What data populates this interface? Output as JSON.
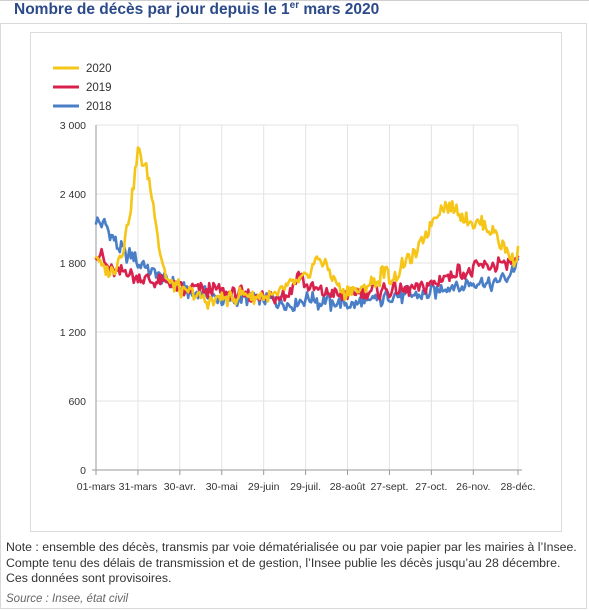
{
  "title": {
    "main": "Nombre de décès par jour depuis le 1",
    "sup": "er",
    "tail": " mars 2020"
  },
  "note": "Note : ensemble des décès, transmis par voie dématérialisée ou par voie papier par les mairies à l’Insee. Compte tenu des délais de transmission et de gestion, l’Insee publie les décès jusqu’au 28 décembre. Ces données sont provisoires.",
  "source": "Source : Insee, état civil",
  "chart_data": {
    "type": "line",
    "title": "Nombre de décès par jour depuis le 1er mars 2020",
    "xlabel": "",
    "ylabel": "",
    "ylim": [
      0,
      3000
    ],
    "xlim_days": [
      0,
      302
    ],
    "yticks": [
      0,
      600,
      1200,
      1800,
      2400,
      3000
    ],
    "ytick_labels": [
      "0",
      "600",
      "1 200",
      "1 800",
      "2 400",
      "3 000"
    ],
    "xtick_labels": [
      "01-mars",
      "31-mars",
      "30-avr.",
      "30-mai",
      "29-juin",
      "29-juil.",
      "28-août",
      "27-sept.",
      "27-oct.",
      "26-nov.",
      "28-déc."
    ],
    "xtick_days": [
      0,
      30,
      60,
      90,
      120,
      150,
      180,
      210,
      240,
      270,
      302
    ],
    "grid": true,
    "legend_position": "top-left",
    "series": [
      {
        "name": "2020",
        "color": "#f5c518",
        "x": [
          0,
          5,
          10,
          15,
          20,
          25,
          28,
          30,
          32,
          35,
          38,
          40,
          43,
          45,
          48,
          50,
          53,
          55,
          60,
          65,
          70,
          75,
          80,
          85,
          90,
          95,
          100,
          105,
          110,
          115,
          120,
          125,
          130,
          135,
          140,
          145,
          150,
          155,
          160,
          165,
          170,
          175,
          180,
          185,
          190,
          195,
          200,
          205,
          210,
          215,
          220,
          225,
          230,
          235,
          240,
          245,
          250,
          255,
          260,
          265,
          270,
          275,
          280,
          285,
          290,
          295,
          300,
          302
        ],
        "y": [
          1850,
          1760,
          1720,
          1800,
          1960,
          2300,
          2600,
          2760,
          2720,
          2650,
          2500,
          2350,
          2150,
          1950,
          1800,
          1700,
          1640,
          1620,
          1580,
          1560,
          1520,
          1500,
          1460,
          1480,
          1500,
          1480,
          1500,
          1520,
          1520,
          1500,
          1520,
          1490,
          1510,
          1560,
          1600,
          1620,
          1680,
          1780,
          1820,
          1800,
          1650,
          1560,
          1550,
          1560,
          1580,
          1600,
          1640,
          1700,
          1680,
          1720,
          1780,
          1820,
          1900,
          2050,
          2150,
          2250,
          2300,
          2280,
          2230,
          2180,
          2150,
          2150,
          2100,
          2080,
          1980,
          1870,
          1820,
          1880
        ]
      },
      {
        "name": "2019",
        "color": "#d9214d",
        "x": [
          0,
          10,
          20,
          30,
          40,
          50,
          60,
          70,
          80,
          90,
          100,
          110,
          120,
          130,
          140,
          145,
          150,
          160,
          170,
          180,
          190,
          200,
          210,
          220,
          230,
          240,
          250,
          260,
          270,
          280,
          290,
          300,
          302
        ],
        "y": [
          1900,
          1760,
          1720,
          1680,
          1660,
          1620,
          1560,
          1560,
          1560,
          1540,
          1540,
          1520,
          1510,
          1500,
          1560,
          1720,
          1580,
          1540,
          1540,
          1520,
          1540,
          1560,
          1560,
          1580,
          1600,
          1620,
          1680,
          1720,
          1740,
          1760,
          1790,
          1800,
          1820
        ]
      },
      {
        "name": "2018",
        "color": "#4a7fc7",
        "x": [
          0,
          5,
          10,
          15,
          20,
          25,
          30,
          35,
          40,
          45,
          50,
          55,
          60,
          70,
          80,
          90,
          100,
          110,
          120,
          130,
          140,
          150,
          160,
          170,
          180,
          190,
          200,
          210,
          220,
          230,
          240,
          250,
          260,
          270,
          280,
          290,
          300,
          302
        ],
        "y": [
          2200,
          2150,
          2050,
          1950,
          1900,
          1850,
          1800,
          1780,
          1720,
          1680,
          1640,
          1620,
          1580,
          1550,
          1520,
          1500,
          1480,
          1500,
          1490,
          1480,
          1460,
          1480,
          1470,
          1450,
          1440,
          1460,
          1480,
          1500,
          1520,
          1540,
          1560,
          1580,
          1600,
          1600,
          1620,
          1660,
          1740,
          1800
        ]
      }
    ]
  }
}
